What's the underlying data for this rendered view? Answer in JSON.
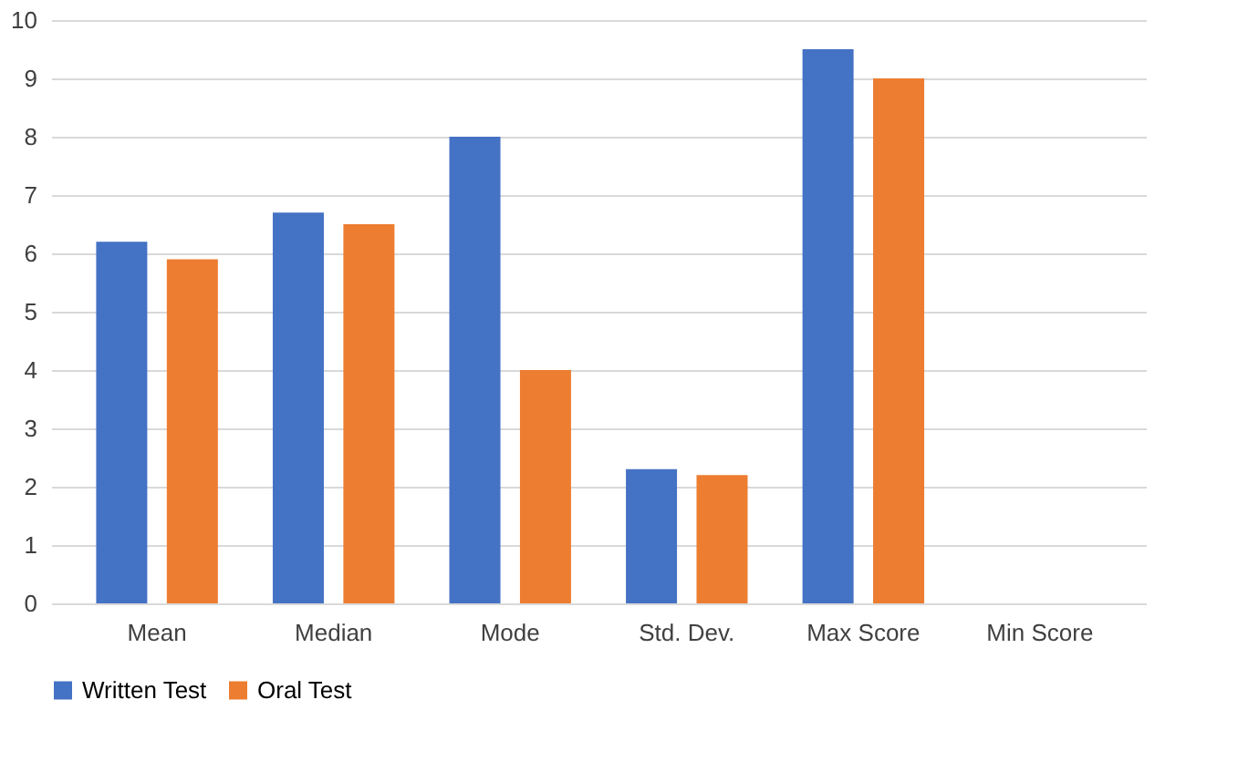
{
  "chart_data": {
    "type": "bar",
    "categories": [
      "Mean",
      "Median",
      "Mode",
      "Std. Dev.",
      "Max Score",
      "Min Score"
    ],
    "series": [
      {
        "name": "Written Test",
        "color": "#4472c4",
        "values": [
          6.2,
          6.7,
          8,
          2.3,
          9.5,
          0
        ]
      },
      {
        "name": "Oral Test",
        "color": "#ed7d31",
        "values": [
          5.9,
          6.5,
          4,
          2.2,
          9,
          0
        ]
      }
    ],
    "ylim": [
      0,
      10
    ],
    "yticks": [
      0,
      1,
      2,
      3,
      4,
      5,
      6,
      7,
      8,
      9,
      10
    ],
    "grid": "y",
    "legend": "bottom"
  }
}
